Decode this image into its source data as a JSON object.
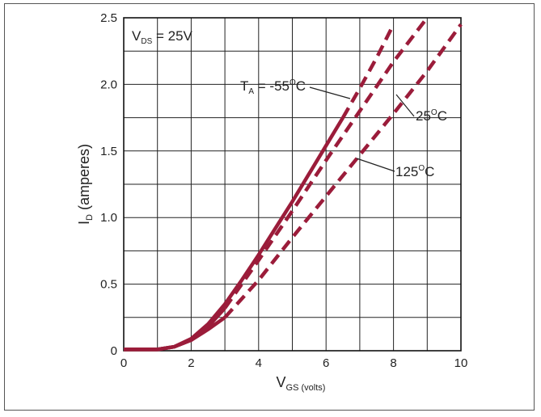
{
  "chart_data": {
    "type": "line",
    "xlabel": {
      "main": "V",
      "sub": "GS (volts)"
    },
    "ylabel": {
      "main": "I",
      "sub": "D",
      "rest": " (amperes)"
    },
    "xlim": [
      0,
      10
    ],
    "ylim": [
      0,
      2.5
    ],
    "x_ticks": [
      "0",
      "2",
      "4",
      "6",
      "8",
      "10"
    ],
    "y_ticks": [
      "0",
      "0.5",
      "1.0",
      "1.5",
      "2.0",
      "2.5"
    ],
    "grid": true,
    "condition": {
      "main": "V",
      "sub": "DS",
      "rest": " = 25V"
    },
    "series": [
      {
        "name": "T_A = -55°C",
        "label_parts": {
          "main": "T",
          "sub": "A",
          "rest": " = -55",
          "sup": "O",
          "unit": "C"
        },
        "color": "#9b1c3a",
        "style": "solid",
        "segments": [
          {
            "style": "solid",
            "x": [
              0,
              1.0,
              1.5,
              2.0,
              2.5,
              3.0,
              3.5,
              4.0,
              4.5,
              5.0,
              5.5,
              6.0,
              6.5
            ],
            "y": [
              0.01,
              0.01,
              0.03,
              0.09,
              0.2,
              0.35,
              0.53,
              0.72,
              0.92,
              1.12,
              1.33,
              1.54,
              1.75
            ]
          },
          {
            "style": "dashed",
            "x": [
              6.5,
              7.0,
              7.5,
              8.0
            ],
            "y": [
              1.75,
              1.97,
              2.2,
              2.45
            ]
          }
        ]
      },
      {
        "name": "25°C",
        "label_parts": {
          "main": "25",
          "sup": "O",
          "unit": "C"
        },
        "color": "#9b1c3a",
        "style": "mixed",
        "segments": [
          {
            "style": "solid",
            "x": [
              0,
              1.0,
              1.5,
              2.0,
              2.5,
              3.0
            ],
            "y": [
              0.01,
              0.01,
              0.03,
              0.08,
              0.18,
              0.32
            ]
          },
          {
            "style": "dashed",
            "x": [
              3.0,
              4.0,
              5.0,
              6.0,
              7.0,
              8.0,
              9.0
            ],
            "y": [
              0.32,
              0.68,
              1.05,
              1.43,
              1.8,
              2.17,
              2.5
            ]
          }
        ]
      },
      {
        "name": "125°C",
        "label_parts": {
          "main": "125",
          "sup": "O",
          "unit": "C"
        },
        "color": "#9b1c3a",
        "style": "dashed",
        "segments": [
          {
            "style": "solid",
            "x": [
              0,
              1.0,
              1.5,
              2.0,
              2.5,
              3.0
            ],
            "y": [
              0.01,
              0.01,
              0.03,
              0.08,
              0.16,
              0.25
            ]
          },
          {
            "style": "dashed",
            "x": [
              3.0,
              4.0,
              5.0,
              6.0,
              7.0,
              8.0,
              9.0,
              10.0
            ],
            "y": [
              0.25,
              0.53,
              0.85,
              1.16,
              1.47,
              1.78,
              2.1,
              2.45
            ]
          }
        ]
      }
    ]
  }
}
